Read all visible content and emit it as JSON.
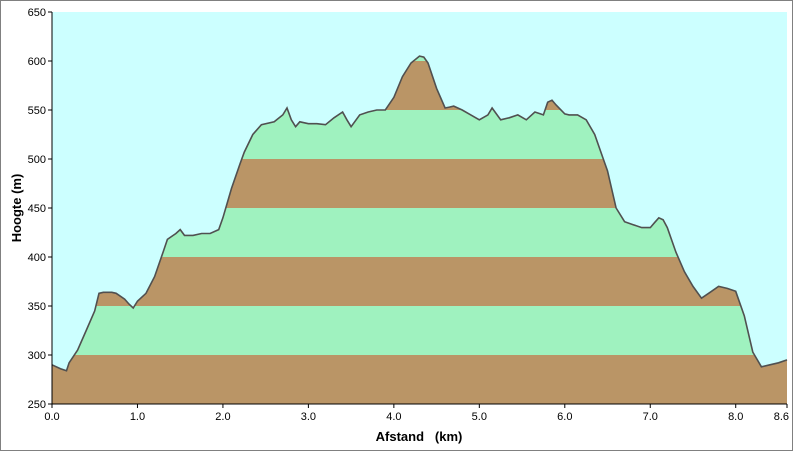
{
  "chart_data": {
    "type": "area",
    "title": "",
    "xlabel": "Afstand   (km)",
    "ylabel": "Hoogte  (m)",
    "xlim": [
      0.0,
      8.6
    ],
    "ylim": [
      250,
      650
    ],
    "x_ticks": [
      "0.0",
      "1.0",
      "2.0",
      "3.0",
      "4.0",
      "5.0",
      "6.0",
      "7.0",
      "8.0",
      "8.6"
    ],
    "x_tick_values": [
      0,
      1,
      2,
      3,
      4,
      5,
      6,
      7,
      8,
      8.6
    ],
    "y_ticks": [
      "250",
      "300",
      "350",
      "400",
      "450",
      "500",
      "550",
      "600",
      "650"
    ],
    "y_tick_values": [
      250,
      300,
      350,
      400,
      450,
      500,
      550,
      600,
      650
    ],
    "grid": false,
    "legend": "none",
    "band_size": 50,
    "colors": {
      "plot_background": "#ccffff",
      "band_brown": "#ba9566",
      "band_green": "#9ff2bf",
      "profile_line": "#505050"
    },
    "series": [
      {
        "x": [
          0.0,
          0.1,
          0.17,
          0.2,
          0.3,
          0.4,
          0.5,
          0.55,
          0.6,
          0.7,
          0.75,
          0.85,
          0.9,
          0.95,
          1.0,
          1.1,
          1.2,
          1.3,
          1.35,
          1.4,
          1.45,
          1.5,
          1.55,
          1.65,
          1.75,
          1.85,
          1.95,
          2.0,
          2.05,
          2.1,
          2.2,
          2.25,
          2.35,
          2.45,
          2.6,
          2.7,
          2.75,
          2.8,
          2.85,
          2.9,
          3.0,
          3.1,
          3.2,
          3.3,
          3.4,
          3.45,
          3.5,
          3.6,
          3.7,
          3.8,
          3.9,
          4.0,
          4.1,
          4.2,
          4.3,
          4.35,
          4.4,
          4.5,
          4.6,
          4.65,
          4.7,
          4.8,
          4.9,
          5.0,
          5.1,
          5.15,
          5.25,
          5.35,
          5.45,
          5.55,
          5.65,
          5.75,
          5.8,
          5.85,
          5.9,
          6.0,
          6.05,
          6.15,
          6.25,
          6.35,
          6.45,
          6.5,
          6.6,
          6.7,
          6.8,
          6.9,
          7.0,
          7.05,
          7.1,
          7.15,
          7.2,
          7.3,
          7.4,
          7.5,
          7.6,
          7.7,
          7.8,
          7.9,
          8.0,
          8.1,
          8.2,
          8.3,
          8.4,
          8.5,
          8.6
        ],
        "values": [
          290,
          286,
          284,
          292,
          305,
          325,
          345,
          363,
          364,
          364,
          363,
          357,
          352,
          348,
          355,
          363,
          380,
          405,
          418,
          421,
          424,
          428,
          422,
          422,
          424,
          424,
          428,
          440,
          455,
          470,
          495,
          507,
          525,
          535,
          538,
          545,
          552,
          540,
          533,
          538,
          536,
          536,
          535,
          542,
          548,
          540,
          533,
          545,
          548,
          550,
          550,
          563,
          584,
          598,
          605,
          604,
          598,
          572,
          552,
          553,
          554,
          550,
          545,
          540,
          545,
          552,
          540,
          542,
          545,
          540,
          548,
          545,
          558,
          560,
          555,
          546,
          545,
          545,
          540,
          525,
          500,
          488,
          450,
          436,
          433,
          430,
          430,
          435,
          440,
          438,
          430,
          405,
          385,
          370,
          358,
          364,
          370,
          368,
          365,
          340,
          303,
          288,
          290,
          292,
          295
        ]
      }
    ]
  }
}
